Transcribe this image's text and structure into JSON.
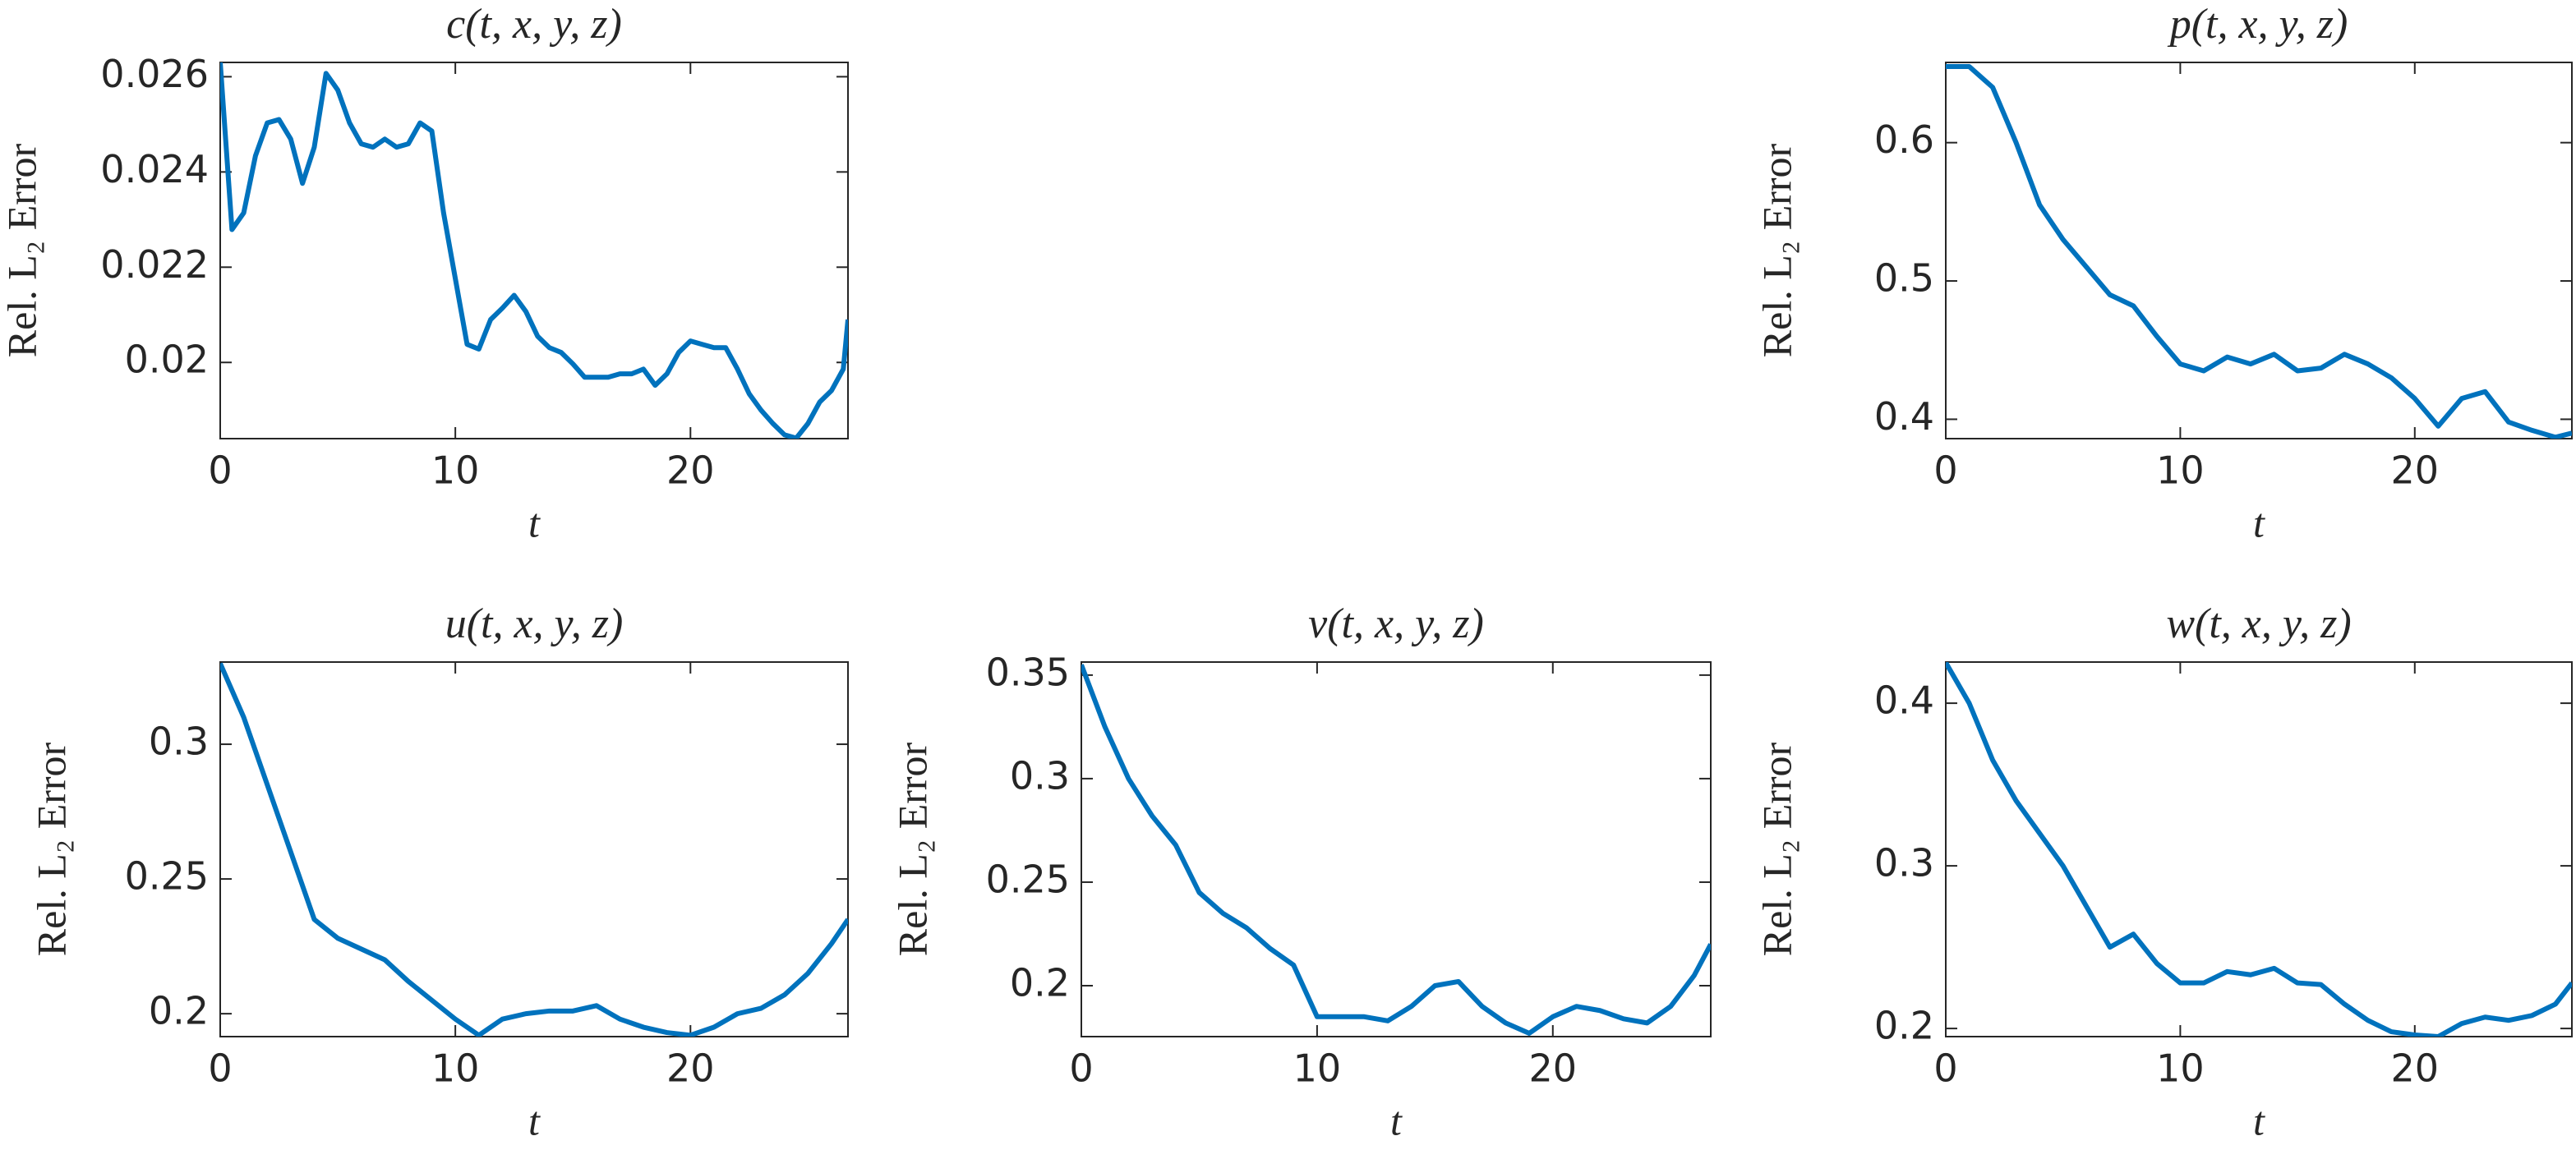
{
  "chart_data": [
    {
      "type": "line",
      "title": "c(t, x, y, z)",
      "xlabel": "t",
      "ylabel": "Rel. L₂ Error",
      "x": [
        0,
        0.5,
        1,
        1.5,
        2,
        2.5,
        3,
        3.5,
        4,
        4.5,
        5,
        5.5,
        6,
        6.5,
        7,
        7.5,
        8,
        8.5,
        9,
        9.5,
        10,
        10.5,
        11,
        11.5,
        12,
        12.5,
        13,
        13.5,
        14,
        14.5,
        15,
        15.5,
        16,
        16.5,
        17,
        17.5,
        18,
        18.5,
        19,
        19.5,
        20,
        20.5,
        21,
        21.5,
        22,
        22.5,
        23,
        23.5,
        24,
        24.5,
        25,
        25.5,
        26,
        26.5,
        26.7
      ],
      "series": [
        {
          "name": "c",
          "color": "#0072bd",
          "values": [
            0.02631,
            0.02279,
            0.02314,
            0.02434,
            0.02503,
            0.0251,
            0.02469,
            0.02376,
            0.02452,
            0.02607,
            0.02572,
            0.02503,
            0.02459,
            0.02452,
            0.02469,
            0.02452,
            0.02459,
            0.02503,
            0.02486,
            0.02314,
            0.02176,
            0.02038,
            0.02028,
            0.0209,
            0.02114,
            0.02141,
            0.02107,
            0.02055,
            0.02031,
            0.02021,
            0.01997,
            0.01969,
            0.01969,
            0.01969,
            0.01976,
            0.01976,
            0.01986,
            0.01952,
            0.01976,
            0.02021,
            0.02045,
            0.02038,
            0.02031,
            0.02031,
            0.01986,
            0.01934,
            0.019,
            0.01872,
            0.01848,
            0.01841,
            0.01872,
            0.01917,
            0.01941,
            0.01986,
            0.0209
          ]
        }
      ],
      "xlim": [
        0,
        26.7
      ],
      "xticks": [
        0,
        10,
        20
      ],
      "ylim": [
        0.0184,
        0.0263
      ],
      "yticks": [
        0.02,
        0.022,
        0.024,
        0.026
      ]
    },
    {
      "type": "line",
      "title": "p(t, x, y, z)",
      "xlabel": "t",
      "ylabel": "Rel. L₂ Error",
      "x": [
        0,
        1,
        2,
        3,
        4,
        5,
        6,
        7,
        8,
        9,
        10,
        11,
        12,
        13,
        14,
        15,
        16,
        17,
        18,
        19,
        20,
        21,
        22,
        23,
        24,
        25,
        26,
        26.7
      ],
      "series": [
        {
          "name": "p",
          "color": "#0072bd",
          "values": [
            0.655,
            0.655,
            0.64,
            0.6,
            0.555,
            0.53,
            0.51,
            0.49,
            0.482,
            0.46,
            0.44,
            0.435,
            0.445,
            0.44,
            0.447,
            0.435,
            0.437,
            0.447,
            0.44,
            0.43,
            0.415,
            0.395,
            0.415,
            0.42,
            0.398,
            0.392,
            0.387,
            0.39
          ]
        }
      ],
      "xlim": [
        0,
        26.7
      ],
      "xticks": [
        0,
        10,
        20
      ],
      "ylim": [
        0.386,
        0.658
      ],
      "yticks": [
        0.4,
        0.5,
        0.6
      ]
    },
    {
      "type": "line",
      "title": "u(t, x, y, z)",
      "xlabel": "t",
      "ylabel": "Rel. L₂ Error",
      "x": [
        0,
        1,
        2,
        3,
        4,
        5,
        6,
        7,
        8,
        9,
        10,
        11,
        12,
        13,
        14,
        15,
        16,
        17,
        18,
        19,
        20,
        21,
        22,
        23,
        24,
        25,
        26,
        26.7
      ],
      "series": [
        {
          "name": "u",
          "color": "#0072bd",
          "values": [
            0.33,
            0.31,
            0.285,
            0.26,
            0.235,
            0.228,
            0.224,
            0.22,
            0.212,
            0.205,
            0.198,
            0.192,
            0.198,
            0.2,
            0.201,
            0.201,
            0.203,
            0.198,
            0.195,
            0.193,
            0.192,
            0.195,
            0.2,
            0.202,
            0.207,
            0.215,
            0.226,
            0.235
          ]
        }
      ],
      "xlim": [
        0,
        26.7
      ],
      "xticks": [
        0,
        10,
        20
      ],
      "ylim": [
        0.1915,
        0.3305
      ],
      "yticks": [
        0.2,
        0.25,
        0.3
      ]
    },
    {
      "type": "line",
      "title": "v(t, x, y, z)",
      "xlabel": "t",
      "ylabel": "Rel. L₂ Error",
      "x": [
        0,
        1,
        2,
        3,
        4,
        5,
        6,
        7,
        8,
        9,
        10,
        11,
        12,
        13,
        14,
        15,
        16,
        17,
        18,
        19,
        20,
        21,
        22,
        23,
        24,
        25,
        26,
        26.7
      ],
      "series": [
        {
          "name": "v",
          "color": "#0072bd",
          "values": [
            0.355,
            0.325,
            0.3,
            0.282,
            0.268,
            0.245,
            0.235,
            0.228,
            0.218,
            0.21,
            0.185,
            0.185,
            0.185,
            0.183,
            0.19,
            0.2,
            0.202,
            0.19,
            0.182,
            0.177,
            0.185,
            0.19,
            0.188,
            0.184,
            0.182,
            0.19,
            0.205,
            0.22
          ]
        }
      ],
      "xlim": [
        0,
        26.7
      ],
      "xticks": [
        0,
        10,
        20
      ],
      "ylim": [
        0.1754,
        0.3563
      ],
      "yticks": [
        0.2,
        0.25,
        0.3,
        0.35
      ]
    },
    {
      "type": "line",
      "title": "w(t, x, y, z)",
      "xlabel": "t",
      "ylabel": "Rel. L₂ Error",
      "x": [
        0,
        1,
        2,
        3,
        4,
        5,
        6,
        7,
        8,
        9,
        10,
        11,
        12,
        13,
        14,
        15,
        16,
        17,
        18,
        19,
        20,
        21,
        22,
        23,
        24,
        25,
        26,
        26.7
      ],
      "series": [
        {
          "name": "w",
          "color": "#0072bd",
          "values": [
            0.425,
            0.4,
            0.365,
            0.34,
            0.32,
            0.3,
            0.275,
            0.25,
            0.258,
            0.24,
            0.228,
            0.228,
            0.235,
            0.233,
            0.237,
            0.228,
            0.227,
            0.215,
            0.205,
            0.198,
            0.196,
            0.195,
            0.203,
            0.207,
            0.205,
            0.208,
            0.215,
            0.228
          ]
        }
      ],
      "xlim": [
        0,
        26.7
      ],
      "xticks": [
        0,
        10,
        20
      ],
      "ylim": [
        0.195,
        0.4253
      ],
      "yticks": [
        0.2,
        0.3,
        0.4
      ]
    }
  ]
}
